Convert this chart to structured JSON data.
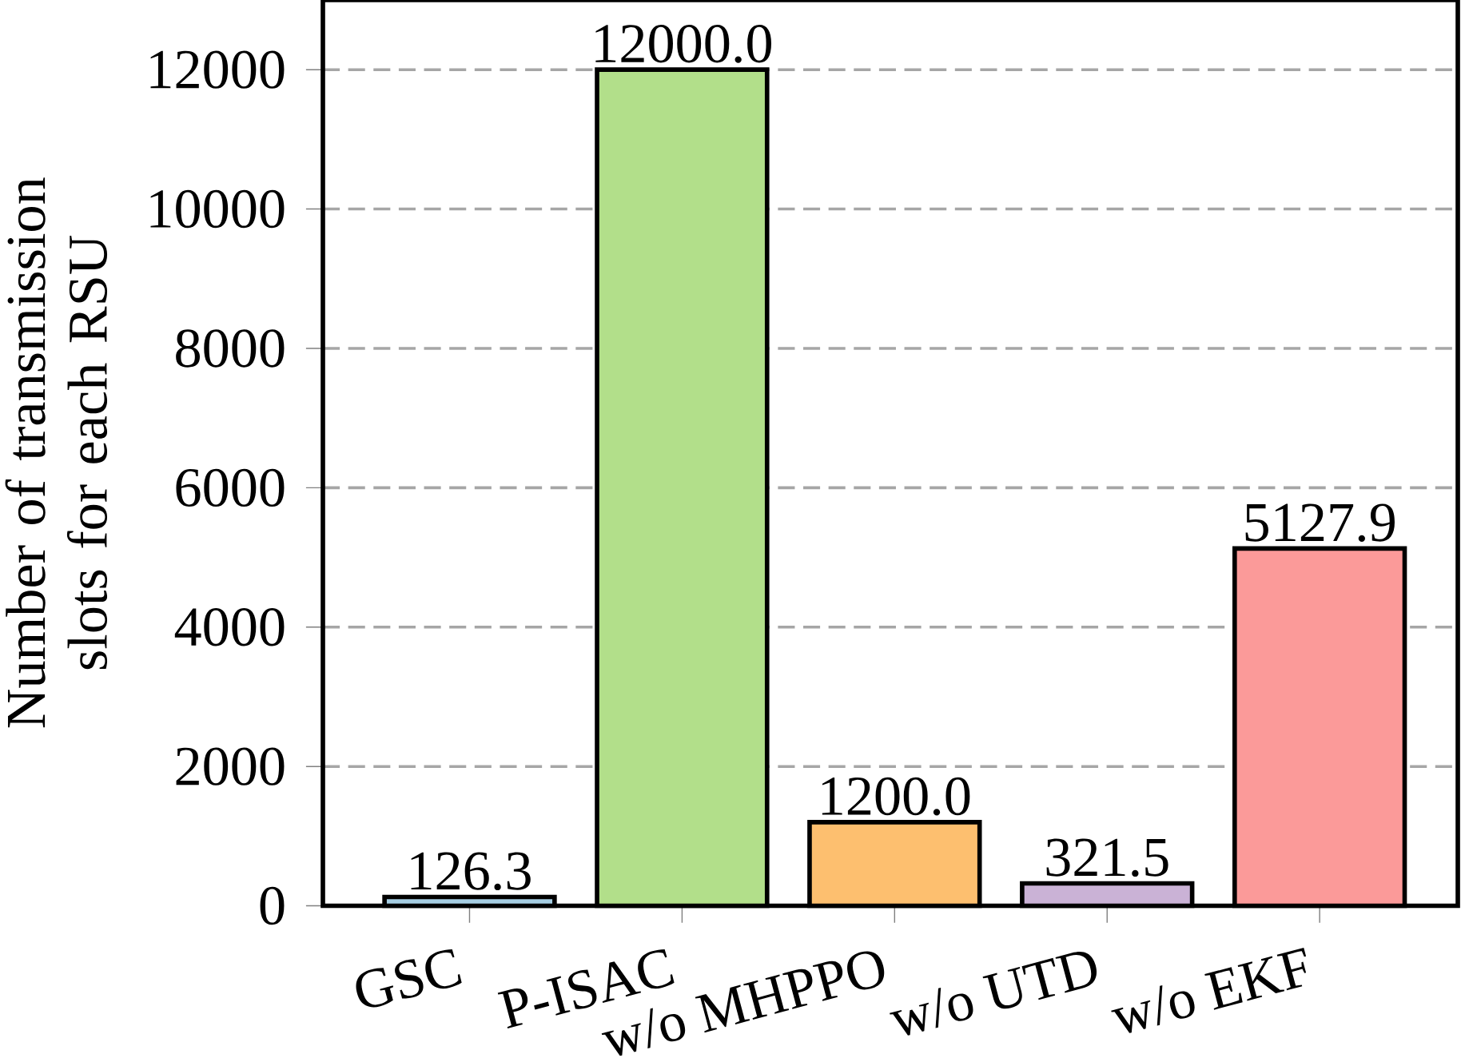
{
  "chart_data": {
    "type": "bar",
    "ylabel": "Number of transmission slots for each RSU",
    "categories": [
      "GSC",
      "P-ISAC",
      "w/o MHPPO",
      "w/o UTD",
      "w/o EKF"
    ],
    "values": [
      126.3,
      12000.0,
      1200.0,
      321.5,
      5127.9
    ],
    "value_labels": [
      "126.3",
      "12000.0",
      "1200.0",
      "321.5",
      "5127.9"
    ],
    "colors": [
      "#a6cee3",
      "#b2df8a",
      "#fdbf6f",
      "#cab2d6",
      "#fb9a99"
    ],
    "ylim": [
      0,
      13000
    ],
    "yticks": [
      0,
      2000,
      4000,
      6000,
      8000,
      10000,
      12000
    ],
    "grid": "y"
  }
}
